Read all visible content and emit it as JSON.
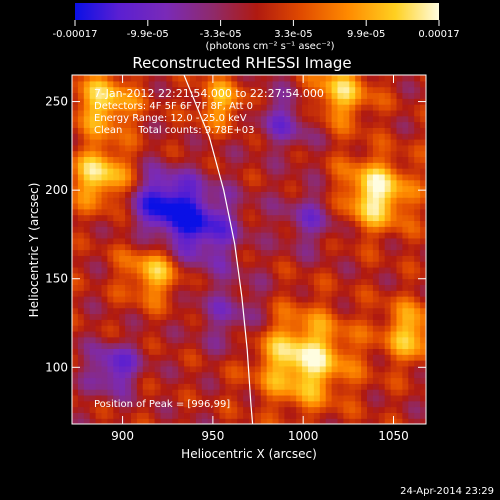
{
  "colorbar": {
    "tick_labels": [
      "-0.00017",
      "-9.9e-05",
      "-3.3e-05",
      "3.3e-05",
      "9.9e-05",
      "0.00017"
    ],
    "unit_label": "(photons cm⁻² s⁻¹ asec⁻²)",
    "range": [
      -0.00017,
      0.00017
    ],
    "colormap": [
      "#0a10e6",
      "#5a1fd2",
      "#7a2ab8",
      "#8f2a6a",
      "#b01a10",
      "#e04a00",
      "#ff8a00",
      "#ffd020",
      "#fffde0"
    ]
  },
  "chart_data": {
    "type": "heatmap",
    "title": "Reconstructed RHESSI Image",
    "xlabel": "Heliocentric X (arcsec)",
    "ylabel": "Heliocentric Y (arcsec)",
    "xlim": [
      872,
      1068
    ],
    "ylim": [
      68,
      265
    ],
    "x_ticks": [
      900,
      950,
      1000,
      1050
    ],
    "x_tick_labels": [
      "900",
      "950",
      "1000",
      "1050"
    ],
    "y_ticks": [
      100,
      150,
      200,
      250
    ],
    "y_tick_labels": [
      "100",
      "150",
      "200",
      "250"
    ],
    "grid": false,
    "annotations": [
      "7-Jan-2012 22:21:54.000 to 22:27:54.000",
      "Detectors: 4F 5F 6F 7F 8F, Att 0",
      "Energy Range: 12.0 - 25.0 keV",
      "Clean     Total counts: 9.78E+03"
    ],
    "peak_label": "Position of Peak = [996,99]",
    "peak_position": [
      996,
      99
    ],
    "limb_curve": [
      [
        934,
        265
      ],
      [
        948,
        230
      ],
      [
        956,
        200
      ],
      [
        962,
        170
      ],
      [
        966,
        140
      ],
      [
        969,
        110
      ],
      [
        971,
        80
      ],
      [
        972,
        68
      ]
    ]
  },
  "timestamp": "24-Apr-2014 23:29"
}
